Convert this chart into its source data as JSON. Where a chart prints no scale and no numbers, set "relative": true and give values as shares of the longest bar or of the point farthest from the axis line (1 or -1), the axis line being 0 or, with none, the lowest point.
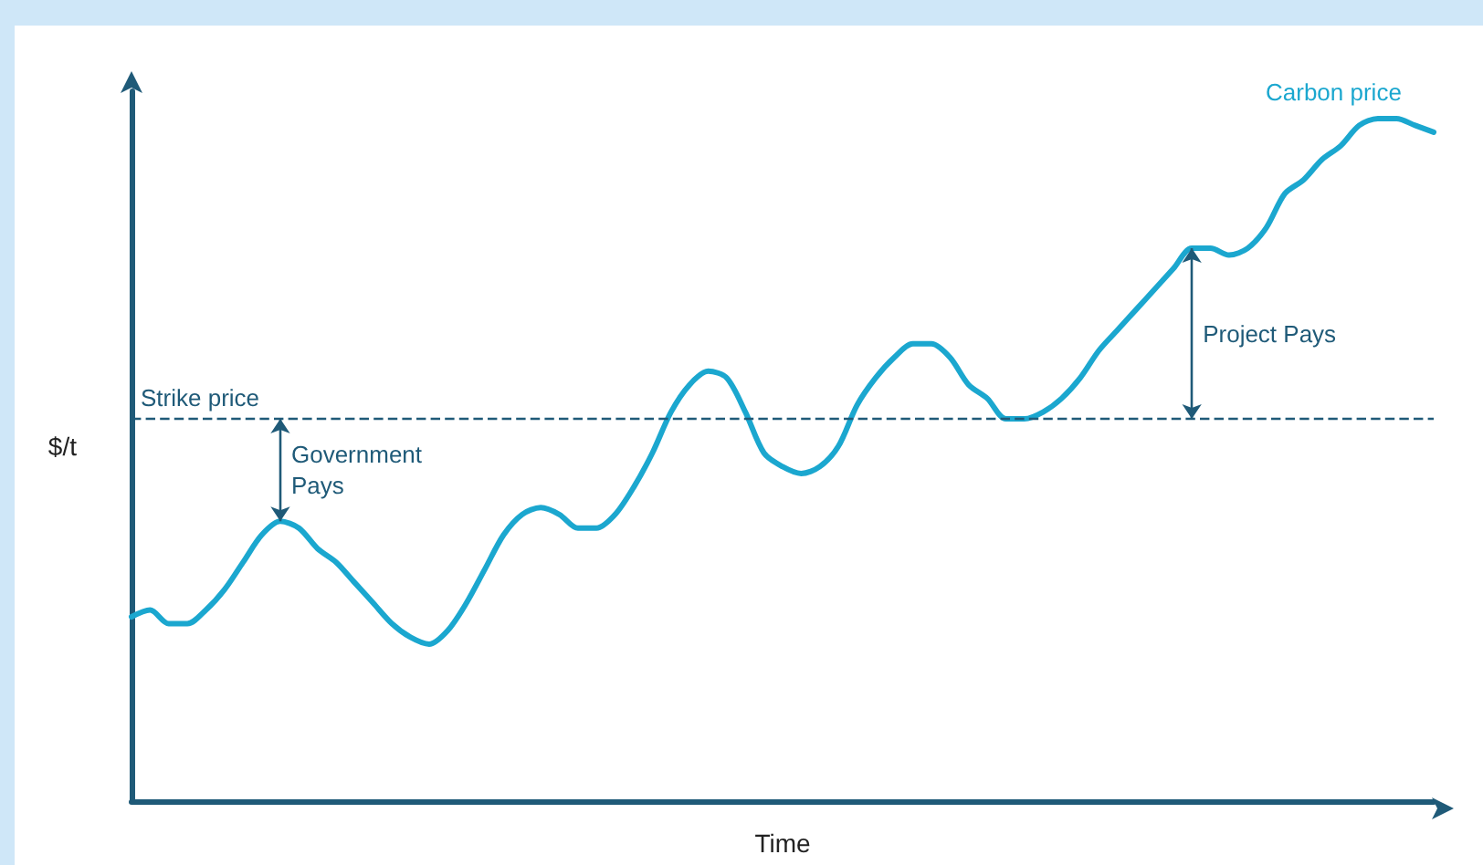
{
  "chart_data": {
    "type": "line",
    "relative": true,
    "xlabel": "Time",
    "ylabel": "$/t",
    "grid": false,
    "legend": false,
    "marker": "none",
    "line_style": "solid",
    "categories": [
      null,
      null,
      null,
      null,
      null,
      null,
      null,
      null,
      null,
      null,
      null,
      null,
      null,
      null,
      null,
      null,
      null,
      null,
      null,
      null,
      null,
      null,
      null,
      null,
      null,
      null,
      null,
      null,
      null,
      null,
      null,
      null,
      null,
      null,
      null,
      null,
      null,
      null,
      null,
      null,
      null,
      null,
      null,
      null,
      null,
      null,
      null,
      null,
      null,
      null,
      null,
      null,
      null,
      null,
      null,
      null,
      null,
      null,
      null,
      null,
      null,
      null,
      null,
      null,
      null,
      null,
      null,
      null,
      null,
      null,
      null
    ],
    "series": [
      {
        "name": "Carbon price",
        "color": "#1ba7cf",
        "values": [
          0.27,
          0.28,
          0.26,
          0.26,
          0.28,
          0.31,
          0.35,
          0.39,
          0.41,
          0.4,
          0.37,
          0.35,
          0.32,
          0.29,
          0.26,
          0.24,
          0.23,
          0.25,
          0.29,
          0.34,
          0.39,
          0.42,
          0.43,
          0.42,
          0.4,
          0.4,
          0.42,
          0.46,
          0.51,
          0.57,
          0.61,
          0.63,
          0.62,
          0.57,
          0.51,
          0.49,
          0.48,
          0.49,
          0.52,
          0.58,
          0.62,
          0.65,
          0.67,
          0.67,
          0.65,
          0.61,
          0.59,
          0.56,
          0.56,
          0.57,
          0.59,
          0.62,
          0.66,
          0.69,
          0.72,
          0.75,
          0.78,
          0.81,
          0.81,
          0.8,
          0.81,
          0.84,
          0.89,
          0.91,
          0.94,
          0.96,
          0.99,
          1.0,
          1.0,
          0.99,
          0.98
        ]
      }
    ],
    "ref_lines": [
      {
        "axis": "y",
        "value": 0.56,
        "label": "Strike price",
        "color": "#1f5a78",
        "line_style": "dashed"
      }
    ],
    "annotations": [
      "Government Pays",
      "Project Pays"
    ]
  }
}
